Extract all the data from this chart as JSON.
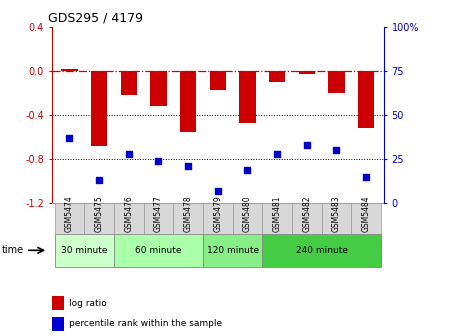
{
  "title": "GDS295 / 4179",
  "samples": [
    "GSM5474",
    "GSM5475",
    "GSM5476",
    "GSM5477",
    "GSM5478",
    "GSM5479",
    "GSM5480",
    "GSM5481",
    "GSM5482",
    "GSM5483",
    "GSM5484"
  ],
  "log_ratio": [
    0.02,
    -0.68,
    -0.22,
    -0.32,
    -0.55,
    -0.17,
    -0.47,
    -0.1,
    -0.03,
    -0.2,
    -0.52
  ],
  "percentile": [
    37,
    13,
    28,
    24,
    21,
    7,
    19,
    28,
    33,
    30,
    15
  ],
  "groups": [
    {
      "label": "30 minute",
      "start": 0,
      "end": 1,
      "color": "#ccffcc"
    },
    {
      "label": "60 minute",
      "start": 2,
      "end": 4,
      "color": "#aaffaa"
    },
    {
      "label": "120 minute",
      "start": 5,
      "end": 6,
      "color": "#88ee88"
    },
    {
      "label": "240 minute",
      "start": 7,
      "end": 10,
      "color": "#44dd44"
    }
  ],
  "bar_color": "#cc0000",
  "scatter_color": "#0000cc",
  "ylim_left": [
    -1.2,
    0.4
  ],
  "ylim_right": [
    0,
    100
  ],
  "yticks_left": [
    -1.2,
    -0.8,
    -0.4,
    0.0,
    0.4
  ],
  "yticks_right": [
    0,
    25,
    50,
    75,
    100
  ],
  "dotted_lines": [
    -0.4,
    -0.8
  ],
  "bg_color": "#ffffff",
  "label_bg": "#d8d8d8",
  "label_border": "#999999",
  "group_border": "#888888"
}
